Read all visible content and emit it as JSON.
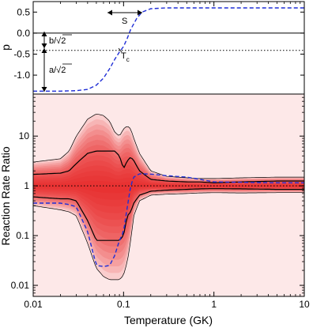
{
  "chart_data": [
    {
      "type": "line",
      "ylabel": "p",
      "xlim": [
        0.01,
        10
      ],
      "x_scale": "log",
      "ylim": [
        -1.45,
        0.75
      ],
      "y_ticks": [
        0.5,
        0.0,
        -0.5,
        -1.0
      ],
      "y_tick_labels": [
        "0.5",
        "0.0",
        "-0.5",
        "-1.0"
      ],
      "reference_lines": [
        {
          "y": 0.0,
          "style": "solid"
        },
        {
          "y": -0.41,
          "style": "dotted"
        }
      ],
      "series": [
        {
          "style": "dashed",
          "color": "#1f2ed6",
          "points": [
            [
              0.01,
              -1.38
            ],
            [
              0.02,
              -1.38
            ],
            [
              0.03,
              -1.37
            ],
            [
              0.04,
              -1.34
            ],
            [
              0.05,
              -1.24
            ],
            [
              0.06,
              -1.07
            ],
            [
              0.07,
              -0.85
            ],
            [
              0.08,
              -0.62
            ],
            [
              0.09,
              -0.45
            ],
            [
              0.1,
              -0.32
            ],
            [
              0.11,
              -0.12
            ],
            [
              0.12,
              0.09
            ],
            [
              0.14,
              0.35
            ],
            [
              0.16,
              0.5
            ],
            [
              0.2,
              0.58
            ],
            [
              0.3,
              0.6
            ],
            [
              1,
              0.6
            ],
            [
              10,
              0.6
            ]
          ]
        }
      ],
      "annotations": {
        "s_label": "S",
        "b_label": "b/√2",
        "a_label": "a/√2",
        "tc_label": "T",
        "tc_subscript": "c"
      }
    },
    {
      "type": "area",
      "xlabel": "Temperature (GK)",
      "ylabel": "Reaction Rate Ratio",
      "x_scale": "log",
      "y_scale": "log",
      "xlim": [
        0.01,
        10
      ],
      "ylim": [
        0.006,
        70
      ],
      "x_ticks": [
        0.01,
        0.1,
        1,
        10
      ],
      "x_tick_labels": [
        "0.01",
        "0.1",
        "1",
        "10"
      ],
      "y_ticks": [
        0.01,
        0.1,
        1,
        10
      ],
      "y_tick_labels": [
        "0.01",
        "0.1",
        "1",
        "10"
      ],
      "background_color": "#fde8e8",
      "band_color": "#e8151a",
      "reference_line": {
        "y": 1,
        "style": "dotted"
      },
      "x": [
        0.01,
        0.02,
        0.025,
        0.03,
        0.04,
        0.05,
        0.06,
        0.07,
        0.08,
        0.09,
        0.1,
        0.11,
        0.12,
        0.13,
        0.15,
        0.2,
        0.3,
        0.5,
        0.7,
        1,
        2,
        5,
        10
      ],
      "outer_upper": [
        3.0,
        3.5,
        5,
        10,
        22,
        28,
        26,
        20,
        12,
        10,
        14,
        16,
        14,
        9,
        4.5,
        2.0,
        1.55,
        1.45,
        1.4,
        1.4,
        1.45,
        1.5,
        1.5
      ],
      "outer_lower": [
        0.4,
        0.33,
        0.3,
        0.25,
        0.07,
        0.022,
        0.015,
        0.013,
        0.013,
        0.013,
        0.016,
        0.03,
        0.08,
        0.25,
        0.5,
        0.65,
        0.68,
        0.7,
        0.72,
        0.73,
        0.72,
        0.73,
        0.73
      ],
      "inner_upper": [
        1.7,
        1.8,
        2.0,
        2.8,
        4.5,
        5.0,
        5.0,
        5.0,
        5.0,
        4.0,
        2.2,
        3.2,
        3.8,
        3.2,
        2.0,
        1.35,
        1.25,
        1.2,
        1.2,
        1.15,
        1.2,
        1.25,
        1.25
      ],
      "inner_lower": [
        0.6,
        0.55,
        0.55,
        0.5,
        0.2,
        0.08,
        0.08,
        0.08,
        0.08,
        0.08,
        0.1,
        0.25,
        0.3,
        0.45,
        0.65,
        0.78,
        0.82,
        0.85,
        0.87,
        0.88,
        0.87,
        0.85,
        0.85
      ],
      "dashed_ratio": [
        0.45,
        0.45,
        0.42,
        0.38,
        0.12,
        0.025,
        0.024,
        0.025,
        0.04,
        0.08,
        0.12,
        0.38,
        1.0,
        1.5,
        1.75,
        1.72,
        1.6,
        1.5,
        1.35,
        1.2,
        1.18,
        1.15,
        1.15
      ]
    }
  ]
}
